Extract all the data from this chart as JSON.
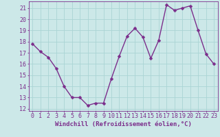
{
  "x": [
    0,
    1,
    2,
    3,
    4,
    5,
    6,
    7,
    8,
    9,
    10,
    11,
    12,
    13,
    14,
    15,
    16,
    17,
    18,
    19,
    20,
    21,
    22,
    23
  ],
  "y": [
    17.8,
    17.1,
    16.6,
    15.6,
    14.0,
    13.0,
    13.0,
    12.3,
    12.5,
    12.5,
    14.7,
    16.7,
    18.5,
    19.2,
    18.4,
    16.5,
    18.1,
    21.3,
    20.8,
    21.0,
    21.2,
    19.0,
    16.9,
    16.0
  ],
  "line_color": "#7b2d8b",
  "marker": "D",
  "marker_size": 2.5,
  "bg_color": "#cce8e8",
  "grid_color": "#aad4d4",
  "xlabel": "Windchill (Refroidissement éolien,°C)",
  "ylim": [
    11.8,
    21.6
  ],
  "xlim": [
    -0.5,
    23.5
  ],
  "yticks": [
    12,
    13,
    14,
    15,
    16,
    17,
    18,
    19,
    20,
    21
  ],
  "xticks": [
    0,
    1,
    2,
    3,
    4,
    5,
    6,
    7,
    8,
    9,
    10,
    11,
    12,
    13,
    14,
    15,
    16,
    17,
    18,
    19,
    20,
    21,
    22,
    23
  ],
  "xlabel_fontsize": 6.5,
  "tick_fontsize": 6.0,
  "line_width": 1.0
}
